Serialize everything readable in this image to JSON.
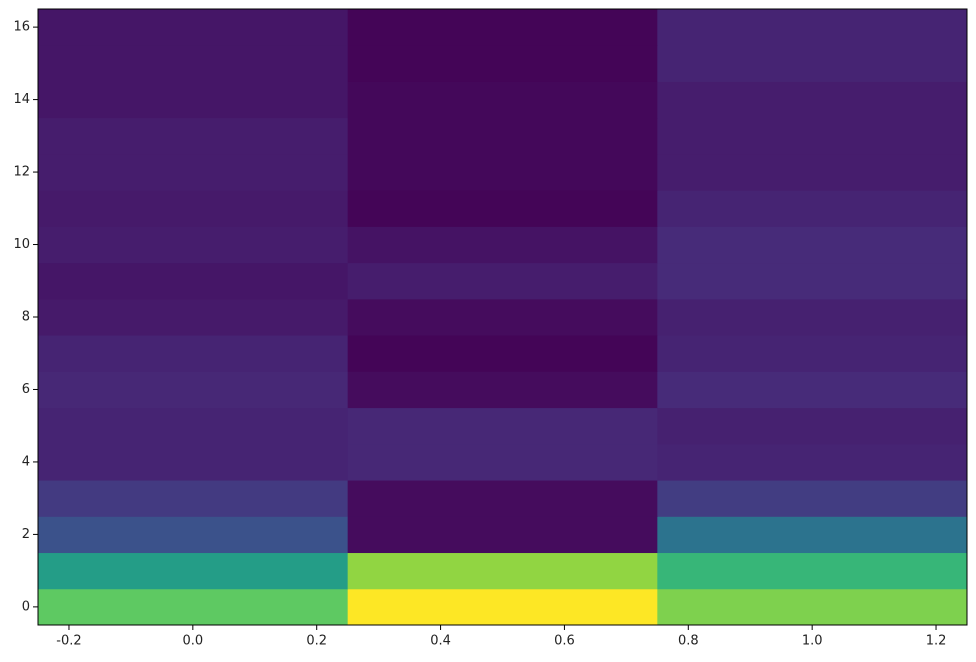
{
  "chart_data": {
    "type": "heatmap",
    "colormap": "viridis",
    "zlim": [
      0,
      1
    ],
    "x": [
      0,
      0.5,
      1.0
    ],
    "y": [
      0,
      1,
      2,
      3,
      4,
      5,
      6,
      7,
      8,
      9,
      10,
      11,
      12,
      13,
      14,
      15,
      16
    ],
    "z": [
      [
        0.75,
        1.0,
        0.8
      ],
      [
        0.55,
        0.83,
        0.66
      ],
      [
        0.25,
        0.03,
        0.38
      ],
      [
        0.17,
        0.03,
        0.18
      ],
      [
        0.1,
        0.11,
        0.1
      ],
      [
        0.1,
        0.11,
        0.09
      ],
      [
        0.11,
        0.03,
        0.12
      ],
      [
        0.1,
        0.01,
        0.1
      ],
      [
        0.07,
        0.03,
        0.09
      ],
      [
        0.06,
        0.08,
        0.12
      ],
      [
        0.08,
        0.05,
        0.12
      ],
      [
        0.07,
        0.01,
        0.1
      ],
      [
        0.08,
        0.02,
        0.08
      ],
      [
        0.08,
        0.02,
        0.08
      ],
      [
        0.06,
        0.02,
        0.08
      ],
      [
        0.06,
        0.01,
        0.1
      ],
      [
        0.06,
        0.01,
        0.1
      ]
    ],
    "xlim": [
      -0.25,
      1.25
    ],
    "ylim": [
      -0.5,
      16.5
    ],
    "xticks": [
      -0.2,
      {
        "value": 0,
        "label": "0.0"
      },
      0.2,
      0.4,
      0.6,
      0.8,
      {
        "value": 1,
        "label": "1.0"
      },
      1.2
    ],
    "yticks": [
      0,
      2,
      4,
      6,
      8,
      10,
      12,
      14,
      16
    ]
  }
}
